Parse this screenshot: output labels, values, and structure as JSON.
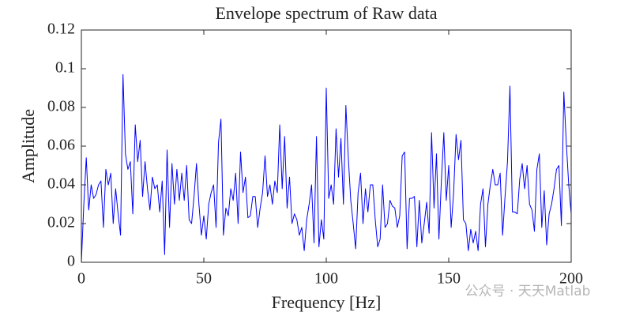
{
  "chart_data": {
    "type": "line",
    "title": "Envelope spectrum of Raw data",
    "x_label": "Frequency [Hz]",
    "y_label": "Amplitude",
    "xlim": [
      0,
      200
    ],
    "xticks": [
      0,
      50,
      100,
      150,
      200
    ],
    "ylim": [
      0,
      0.12
    ],
    "yticks": [
      0,
      0.02,
      0.04,
      0.06,
      0.08,
      0.1,
      0.12
    ],
    "grid": false,
    "x": [
      0,
      1,
      2,
      3,
      4,
      5,
      6,
      7,
      8,
      9,
      10,
      11,
      12,
      13,
      14,
      15,
      16,
      17,
      18,
      19,
      20,
      21,
      22,
      23,
      24,
      25,
      26,
      27,
      28,
      29,
      30,
      31,
      32,
      33,
      34,
      35,
      36,
      37,
      38,
      39,
      40,
      41,
      42,
      43,
      44,
      45,
      46,
      47,
      48,
      49,
      50,
      51,
      52,
      53,
      54,
      55,
      56,
      57,
      58,
      59,
      60,
      61,
      62,
      63,
      64,
      65,
      66,
      67,
      68,
      69,
      70,
      71,
      72,
      73,
      74,
      75,
      76,
      77,
      78,
      79,
      80,
      81,
      82,
      83,
      84,
      85,
      86,
      87,
      88,
      89,
      90,
      91,
      92,
      93,
      94,
      95,
      96,
      97,
      98,
      99,
      100,
      101,
      102,
      103,
      104,
      105,
      106,
      107,
      108,
      109,
      110,
      111,
      112,
      113,
      114,
      115,
      116,
      117,
      118,
      119,
      120,
      121,
      122,
      123,
      124,
      125,
      126,
      127,
      128,
      129,
      130,
      131,
      132,
      133,
      134,
      135,
      136,
      137,
      138,
      139,
      140,
      141,
      142,
      143,
      144,
      145,
      146,
      147,
      148,
      149,
      150,
      151,
      152,
      153,
      154,
      155,
      156,
      157,
      158,
      159,
      160,
      161,
      162,
      163,
      164,
      165,
      166,
      167,
      168,
      169,
      170,
      171,
      172,
      173,
      174,
      175,
      176,
      177,
      178,
      179,
      180,
      181,
      182,
      183,
      184,
      185,
      186,
      187,
      188,
      189,
      190,
      191,
      192,
      193,
      194,
      195,
      196,
      197,
      198,
      199,
      200
    ],
    "series": [
      {
        "color": "#0000ff",
        "values": [
          0,
          0.03,
          0.054,
          0.027,
          0.04,
          0.033,
          0.035,
          0.04,
          0.042,
          0.018,
          0.048,
          0.04,
          0.046,
          0.02,
          0.038,
          0.025,
          0.014,
          0.097,
          0.056,
          0.048,
          0.052,
          0.025,
          0.071,
          0.052,
          0.063,
          0.034,
          0.052,
          0.038,
          0.027,
          0.044,
          0.038,
          0.04,
          0.026,
          0.042,
          0.004,
          0.058,
          0.018,
          0.051,
          0.03,
          0.048,
          0.032,
          0.046,
          0.032,
          0.05,
          0.022,
          0.02,
          0.034,
          0.051,
          0.03,
          0.014,
          0.024,
          0.012,
          0.03,
          0.036,
          0.04,
          0.018,
          0.062,
          0.074,
          0.014,
          0.028,
          0.024,
          0.038,
          0.032,
          0.046,
          0.02,
          0.057,
          0.036,
          0.044,
          0.023,
          0.024,
          0.034,
          0.034,
          0.018,
          0.028,
          0.036,
          0.055,
          0.034,
          0.04,
          0.03,
          0.042,
          0.036,
          0.071,
          0.038,
          0.065,
          0.028,
          0.044,
          0.02,
          0.025,
          0.022,
          0.014,
          0.018,
          0.006,
          0.022,
          0.03,
          0.04,
          0.01,
          0.065,
          0.008,
          0.022,
          0.012,
          0.09,
          0.033,
          0.04,
          0.03,
          0.069,
          0.044,
          0.064,
          0.03,
          0.081,
          0.054,
          0.032,
          0.02,
          0.007,
          0.036,
          0.046,
          0.02,
          0.038,
          0.026,
          0.04,
          0.04,
          0.022,
          0.008,
          0.012,
          0.04,
          0.018,
          0.02,
          0.032,
          0.029,
          0.028,
          0.018,
          0.024,
          0.055,
          0.057,
          0.007,
          0.033,
          0.033,
          0.034,
          0.008,
          0.032,
          0.01,
          0.02,
          0.031,
          0.015,
          0.067,
          0.028,
          0.056,
          0.012,
          0.042,
          0.067,
          0.032,
          0.05,
          0.018,
          0.036,
          0.066,
          0.053,
          0.063,
          0.022,
          0.02,
          0.006,
          0.017,
          0.01,
          0.016,
          0.006,
          0.03,
          0.038,
          0.008,
          0.03,
          0.04,
          0.048,
          0.04,
          0.04,
          0.046,
          0.014,
          0.034,
          0.052,
          0.091,
          0.026,
          0.026,
          0.025,
          0.043,
          0.051,
          0.038,
          0.05,
          0.03,
          0.027,
          0.016,
          0.048,
          0.056,
          0.018,
          0.037,
          0.009,
          0.025,
          0.03,
          0.038,
          0.048,
          0.05,
          0.019,
          0.088,
          0.062,
          0.04,
          0.025
        ]
      }
    ]
  },
  "watermark": "公众号 · 天天Matlab"
}
